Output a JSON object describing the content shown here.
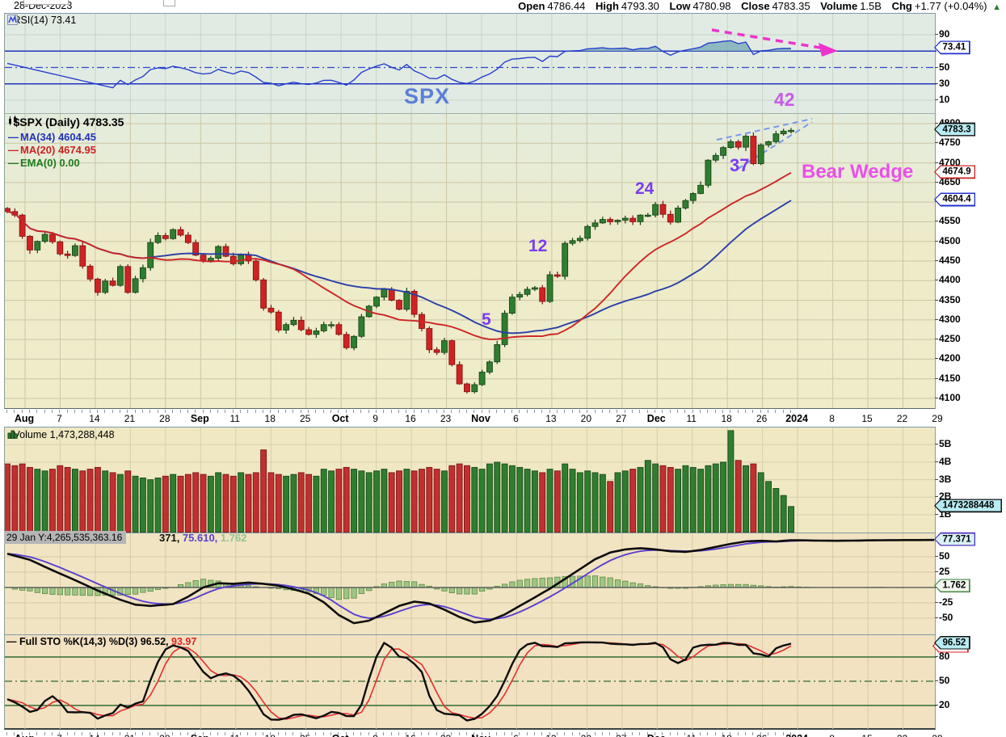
{
  "header": {
    "date": "28-Dec-2023",
    "open_label": "Open",
    "open": "4786.44",
    "high_label": "High",
    "high": "4793.30",
    "low_label": "Low",
    "low": "4780.98",
    "close_label": "Close",
    "close": "4783.35",
    "volume_label": "Volume",
    "volume": "1.5B",
    "chg_label": "Chg",
    "chg": "+1.77 (+0.04%)",
    "arrow": "▲"
  },
  "rsi": {
    "legend": "RSI(14) 73.41",
    "badge": "73.41",
    "axis": [
      90,
      50,
      30,
      10
    ]
  },
  "price": {
    "legend": "$SPX (Daily) 4783.35",
    "ma34_label": "MA(34) 4604.45",
    "ma20_label": "MA(20) 4674.95",
    "ema_label": "EMA(0) 0.00",
    "badge_close": "4783.3",
    "badge_ma20": "4674.9",
    "badge_ma34": "4604.4",
    "axis": [
      4800,
      4750,
      4700,
      4650,
      4600,
      4550,
      4500,
      4450,
      4400,
      4350,
      4300,
      4250,
      4200,
      4150,
      4100
    ]
  },
  "volume": {
    "legend": "Volume 1,473,288,448",
    "axis": [
      "5B",
      "4B",
      "3B",
      "2B",
      "1B"
    ],
    "badge": "1473288448"
  },
  "osc": {
    "tooltip": "29 Jan Y:4,265,535,363.16",
    "legend_p1": "371,",
    "legend_p2": " 75.610,",
    "legend_p3": " 1.762",
    "axis": [
      50,
      25,
      -25,
      -50
    ],
    "badge_line": "77.371",
    "badge_hist": "1.762"
  },
  "stoch": {
    "legend_dash": "—",
    "legend_main": " Full STO %K(14,3) %D(3) 96.52, ",
    "legend_d": "93.97",
    "axis": [
      80,
      50,
      20
    ],
    "badge_k": "96.52",
    "badge_d": "93.97"
  },
  "annotations": {
    "symbol": "SPX",
    "wave5": "5",
    "wave12": "12",
    "wave24": "24",
    "wave37": "37",
    "wave42": "42",
    "pattern": "Bear Wedge"
  },
  "xaxis": {
    "labels": [
      "Aug",
      "7",
      "14",
      "21",
      "28",
      "Sep",
      "11",
      "18",
      "25",
      "Oct",
      "9",
      "16",
      "23",
      "Nov",
      "6",
      "13",
      "20",
      "27",
      "Dec",
      "11",
      "18",
      "26",
      "2024",
      "8",
      "15",
      "22",
      "29"
    ],
    "bold_indices": [
      0,
      5,
      9,
      13,
      18,
      22
    ]
  },
  "colors": {
    "candle_up": "#2f7d2f",
    "candle_down": "#cf2323",
    "ma34": "#2b3fa8",
    "ma20": "#cd2626",
    "ema": "#1f7a1f",
    "rsi_line": "#2940cc",
    "rsi_ref": "#2233bb",
    "rsi_shade": "#7fb0ba",
    "osc_line": "#0d0d0d",
    "osc_signal": "#5a3fd0",
    "osc_hist": "#9fc583",
    "stoch_k": "#0d0d0d",
    "stoch_d": "#e03030",
    "stoch_ref": "#2f6b2f",
    "annotation_purple": "#7a3cf0",
    "annotation_magenta": "#ea50ea",
    "annotation_violet": "#c85ae8",
    "symbol_blue": "#5b7fd6",
    "wedge_dash": "#7799ee",
    "arrow_magenta": "#ee33cc",
    "badge_cyan": "#b8ecf2",
    "up_green": "#2d7a2d"
  },
  "chart_data": [
    {
      "type": "candlestick",
      "name": "$SPX Daily",
      "ylim": [
        4100,
        4800
      ],
      "closes": [
        4576,
        4567,
        4513,
        4478,
        4500,
        4518,
        4499,
        4468,
        4464,
        4489,
        4437,
        4404,
        4370,
        4399,
        4388,
        4436,
        4370,
        4405,
        4433,
        4497,
        4515,
        4507,
        4530,
        4516,
        4497,
        4465,
        4451,
        4457,
        4487,
        4462,
        4443,
        4465,
        4450,
        4402,
        4330,
        4320,
        4274,
        4288,
        4299,
        4275,
        4263,
        4272,
        4288,
        4288,
        4263,
        4229,
        4258,
        4308,
        4335,
        4358,
        4378,
        4350,
        4327,
        4373,
        4314,
        4278,
        4224,
        4217,
        4247,
        4186,
        4137,
        4117,
        4135,
        4167,
        4193,
        4237,
        4317,
        4358,
        4365,
        4378,
        4382,
        4347,
        4415,
        4411,
        4495,
        4502,
        4508,
        4538,
        4547,
        4556,
        4550,
        4554,
        4559,
        4550,
        4567,
        4567,
        4594,
        4569,
        4549,
        4585,
        4604,
        4622,
        4643,
        4707,
        4719,
        4739,
        4754,
        4740,
        4768,
        4698,
        4746,
        4754,
        4774,
        4781,
        4783
      ],
      "last_bar": {
        "open": 4786.44,
        "high": 4793.3,
        "low": 4780.98,
        "close": 4783.35
      },
      "ma34_last": 4604.45,
      "ma20_last": 4674.95
    },
    {
      "type": "line",
      "name": "RSI(14)",
      "ylim": [
        0,
        100
      ],
      "ref_lines": [
        70,
        50,
        30
      ],
      "last": 73.41
    },
    {
      "type": "bar",
      "name": "Volume",
      "unit": "billions",
      "ylim": [
        0,
        6
      ],
      "values": [
        3.9,
        3.8,
        3.9,
        3.7,
        3.6,
        3.5,
        3.6,
        3.8,
        3.7,
        3.6,
        3.5,
        3.6,
        3.7,
        3.5,
        3.4,
        3.3,
        3.5,
        3.2,
        3.1,
        3.0,
        3.1,
        3.2,
        3.3,
        3.2,
        3.3,
        3.4,
        3.3,
        3.2,
        3.4,
        3.3,
        3.2,
        3.4,
        3.3,
        3.4,
        4.7,
        3.4,
        3.3,
        3.2,
        3.3,
        3.4,
        3.3,
        3.2,
        3.6,
        3.5,
        3.6,
        3.7,
        3.6,
        3.5,
        3.4,
        3.5,
        3.6,
        3.4,
        3.5,
        3.6,
        3.5,
        3.6,
        3.7,
        3.6,
        3.5,
        3.8,
        3.9,
        3.8,
        3.7,
        3.6,
        3.9,
        4.0,
        3.9,
        3.8,
        3.7,
        3.6,
        3.5,
        3.4,
        3.6,
        3.5,
        3.9,
        3.6,
        3.4,
        3.5,
        3.4,
        3.3,
        2.9,
        3.4,
        3.5,
        3.6,
        3.7,
        4.1,
        3.9,
        3.8,
        3.7,
        3.6,
        3.8,
        3.7,
        3.6,
        3.8,
        3.9,
        4.0,
        5.8,
        4.1,
        3.8,
        3.9,
        3.4,
        2.9,
        2.5,
        2.1,
        1.47
      ],
      "last": 1.473288448
    },
    {
      "type": "line+histogram",
      "name": "oscillator",
      "ylim": [
        -60,
        80
      ],
      "line_points": [
        [
          0,
          55
        ],
        [
          3,
          45
        ],
        [
          6,
          28
        ],
        [
          9,
          12
        ],
        [
          12,
          -5
        ],
        [
          15,
          -20
        ],
        [
          17,
          -28
        ],
        [
          19,
          -30
        ],
        [
          22,
          -27
        ],
        [
          24,
          -15
        ],
        [
          26,
          0
        ],
        [
          28,
          7
        ],
        [
          30,
          6
        ],
        [
          32,
          8
        ],
        [
          34,
          6
        ],
        [
          36,
          3
        ],
        [
          38,
          -3
        ],
        [
          40,
          -10
        ],
        [
          42,
          -24
        ],
        [
          44,
          -45
        ],
        [
          46,
          -58
        ],
        [
          48,
          -54
        ],
        [
          50,
          -42
        ],
        [
          52,
          -30
        ],
        [
          54,
          -23
        ],
        [
          56,
          -26
        ],
        [
          58,
          -36
        ],
        [
          60,
          -48
        ],
        [
          62,
          -57
        ],
        [
          64,
          -54
        ],
        [
          66,
          -44
        ],
        [
          68,
          -30
        ],
        [
          70,
          -16
        ],
        [
          72,
          -2
        ],
        [
          74,
          14
        ],
        [
          76,
          30
        ],
        [
          78,
          46
        ],
        [
          80,
          57
        ],
        [
          82,
          62
        ],
        [
          84,
          64
        ],
        [
          86,
          62
        ],
        [
          88,
          59
        ],
        [
          90,
          58
        ],
        [
          92,
          61
        ],
        [
          94,
          66
        ],
        [
          96,
          71
        ],
        [
          98,
          75
        ],
        [
          100,
          76
        ],
        [
          102,
          75
        ],
        [
          104,
          77
        ],
        [
          110,
          76
        ],
        [
          116,
          77
        ],
        [
          123,
          77.4
        ]
      ],
      "last": {
        "line": 77.371,
        "signal": 75.61,
        "histogram": 1.762
      }
    },
    {
      "type": "line",
      "name": "Full Stochastic %K(14,3) %D(3)",
      "ylim": [
        0,
        100
      ],
      "ref_lines": [
        80,
        50,
        20
      ],
      "last": {
        "k": 96.52,
        "d": 93.97
      }
    }
  ]
}
